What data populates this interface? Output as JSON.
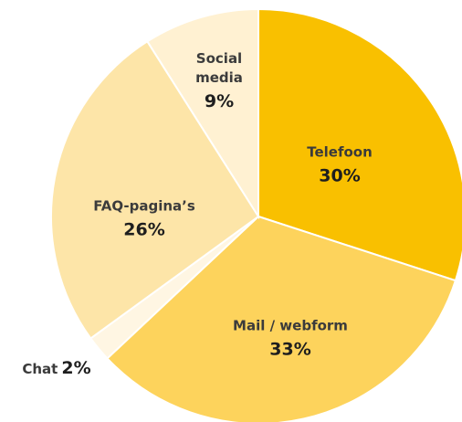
{
  "chart_data": {
    "type": "pie",
    "categories": [
      "Telefoon",
      "Mail / webform",
      "Chat",
      "FAQ-pagina’s",
      "Social media"
    ],
    "values": [
      30,
      33,
      2,
      26,
      9
    ],
    "value_labels": [
      "30%",
      "33%",
      "2%",
      "26%",
      "9%"
    ],
    "colors": [
      "#f9c000",
      "#fdd35c",
      "#fff6e3",
      "#fde5a8",
      "#fff1d2"
    ]
  }
}
